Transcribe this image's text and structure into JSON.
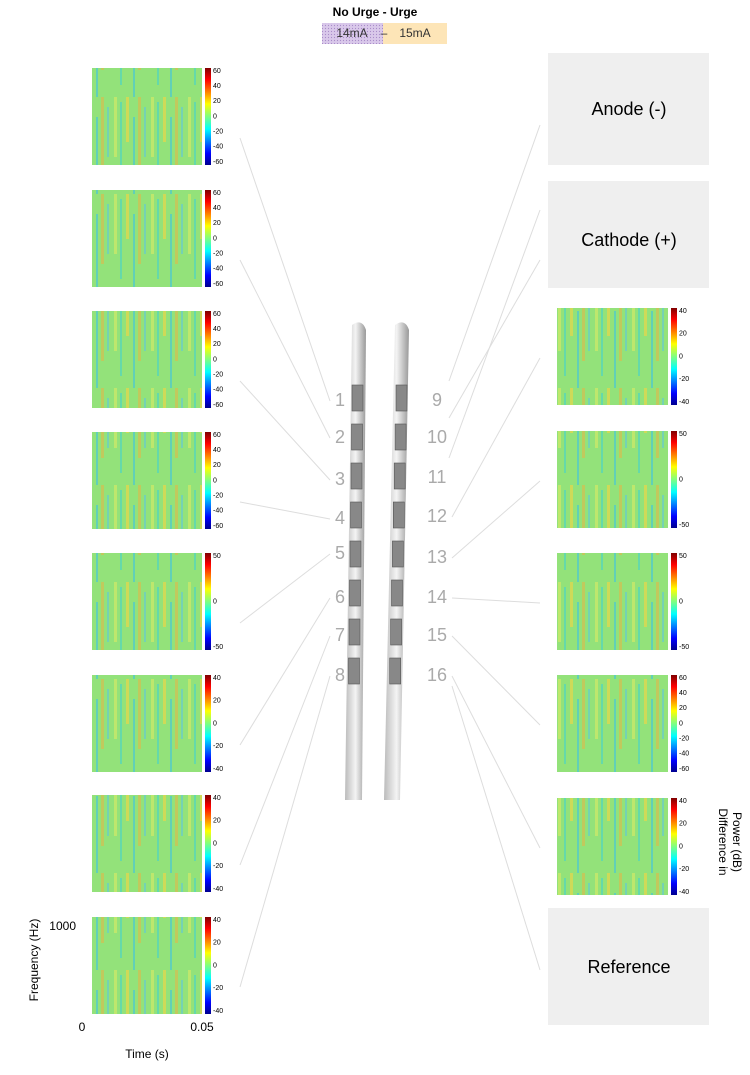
{
  "header": {
    "title": "No Urge - Urge",
    "left": "14mA",
    "separator": "–",
    "right": "15mA"
  },
  "left_panels": [
    {
      "colorbar_ticks": [
        60,
        40,
        20,
        0,
        -20,
        -40,
        -60
      ]
    },
    {
      "colorbar_ticks": [
        60,
        40,
        20,
        0,
        -20,
        -40,
        -60
      ]
    },
    {
      "colorbar_ticks": [
        60,
        40,
        20,
        0,
        -20,
        -40,
        -60
      ]
    },
    {
      "colorbar_ticks": [
        60,
        40,
        20,
        0,
        -20,
        -40,
        -60
      ]
    },
    {
      "colorbar_ticks": [
        50,
        0,
        -50
      ]
    },
    {
      "colorbar_ticks": [
        40,
        20,
        0,
        -20,
        -40
      ]
    },
    {
      "colorbar_ticks": [
        40,
        20,
        0,
        -20,
        -40
      ]
    },
    {
      "colorbar_ticks": [
        40,
        20,
        0,
        -20,
        -40
      ]
    }
  ],
  "right_panels": [
    {
      "colorbar_ticks": [
        40,
        20,
        0,
        -20,
        -40
      ]
    },
    {
      "colorbar_ticks": [
        50,
        0,
        -50
      ]
    },
    {
      "colorbar_ticks": [
        50,
        0,
        -50
      ]
    },
    {
      "colorbar_ticks": [
        60,
        40,
        20,
        0,
        -20,
        -40,
        -60
      ]
    },
    {
      "colorbar_ticks": [
        40,
        20,
        0,
        -20,
        -40
      ]
    }
  ],
  "electrodes": {
    "left": [
      "1",
      "2",
      "3",
      "4",
      "5",
      "6",
      "7",
      "8"
    ],
    "right": [
      "9",
      "10",
      "11",
      "12",
      "13",
      "14",
      "15",
      "16"
    ]
  },
  "boxes": {
    "anode": "Anode (-)",
    "cathode": "Cathode (+)",
    "reference": "Reference"
  },
  "axes": {
    "y_label": "Frequency (Hz)",
    "y_top": "1000",
    "y_bottom": "0",
    "x_left": "0",
    "x_right": "0.05",
    "x_label": "Time (s)",
    "colorbar_label": [
      "Difference in",
      "Power (dB)"
    ]
  }
}
